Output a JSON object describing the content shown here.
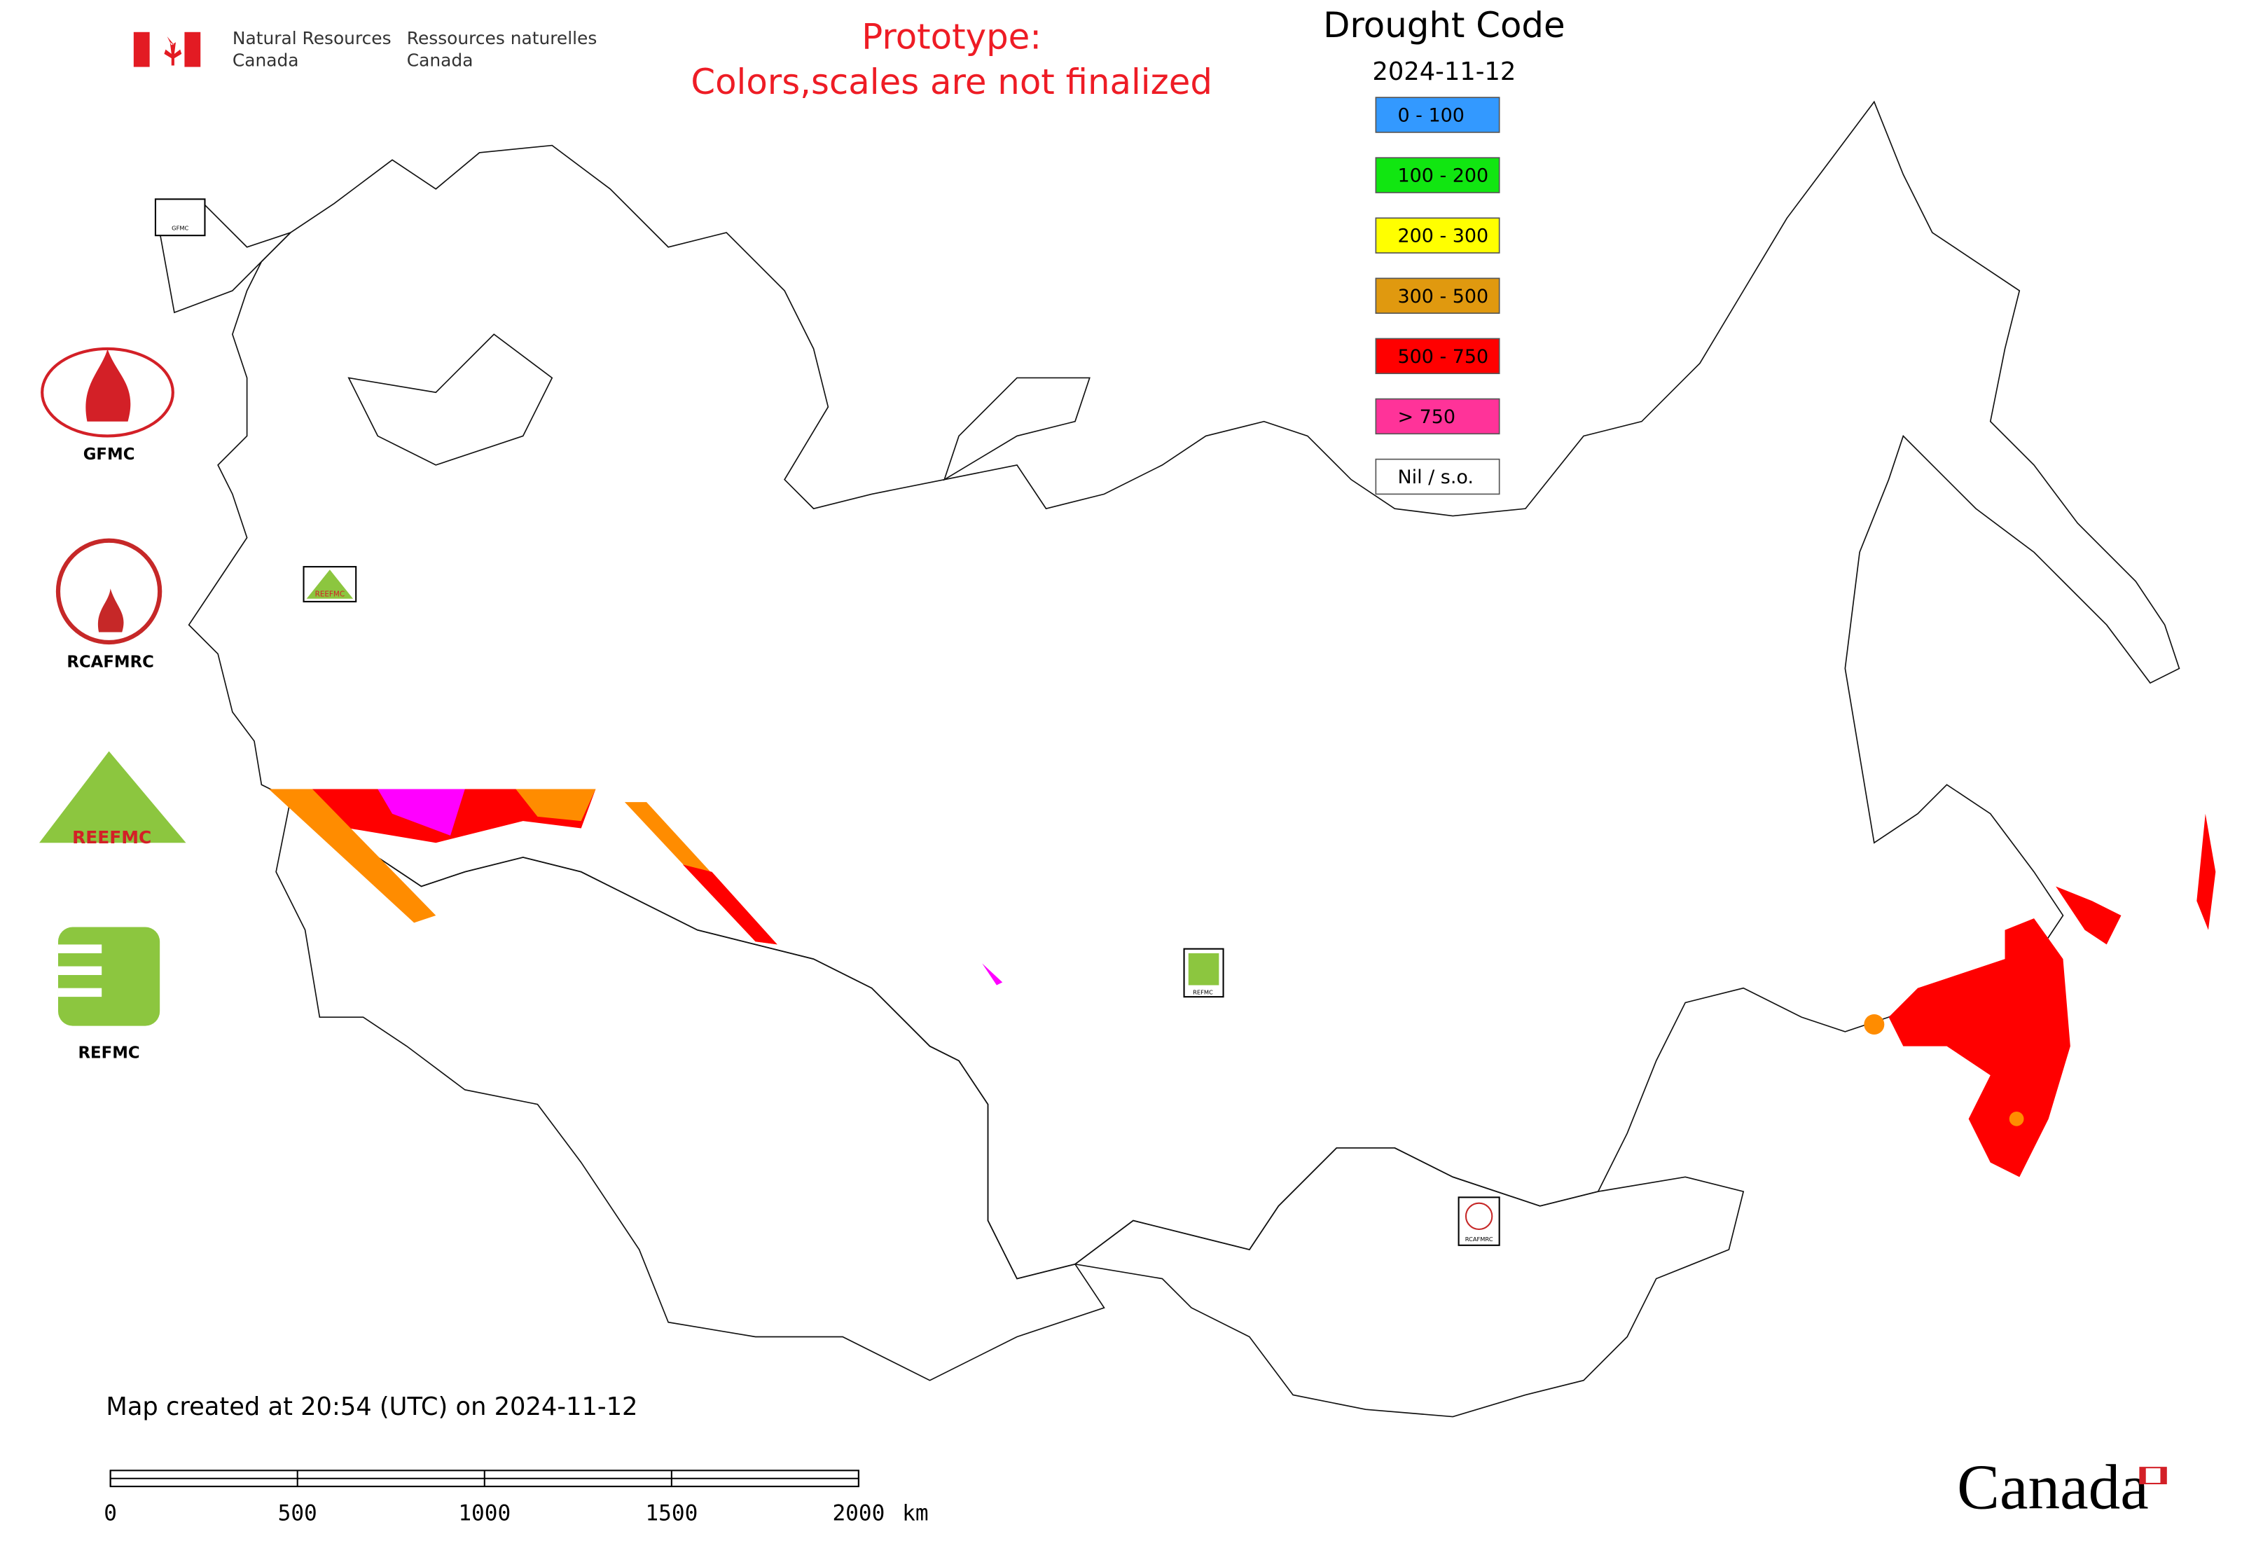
{
  "header": {
    "department_en": [
      "Natural Resources",
      "Canada"
    ],
    "department_fr": [
      "Ressources naturelles",
      "Canada"
    ]
  },
  "notice": [
    "Prototype:",
    "Colors,scales are not finalized"
  ],
  "title": "Drought Code",
  "date": "2024-11-12",
  "legend": [
    {
      "label": "0 - 100",
      "color": "#3399ff"
    },
    {
      "label": "100 - 200",
      "color": "#11e611"
    },
    {
      "label": "200 - 300",
      "color": "#ffff00"
    },
    {
      "label": "300 - 500",
      "color": "#e0990f"
    },
    {
      "label": "500 - 750",
      "color": "#ff0000"
    },
    {
      "label": "> 750",
      "color": "#ff3399"
    },
    {
      "label": "Nil / s.o.",
      "color": "#ffffff"
    }
  ],
  "logos": [
    "GFMC",
    "RCAFMRC",
    "REEFMC",
    "REFMC"
  ],
  "map_markers": [
    {
      "label": "GFMC"
    },
    {
      "label": "REEFMC"
    },
    {
      "label": "REFMC"
    },
    {
      "label": "RCAFMRC"
    }
  ],
  "footer": "Map created at 20:54 (UTC) on 2024-11-12",
  "scale_bar": {
    "ticks": [
      0,
      500,
      1000,
      1500,
      2000
    ],
    "unit": "km"
  },
  "wordmark": "Canada"
}
